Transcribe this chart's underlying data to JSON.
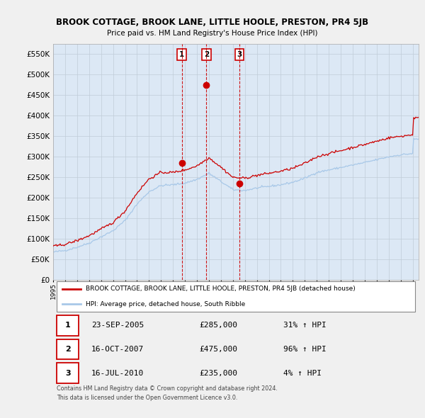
{
  "title": "BROOK COTTAGE, BROOK LANE, LITTLE HOOLE, PRESTON, PR4 5JB",
  "subtitle": "Price paid vs. HM Land Registry's House Price Index (HPI)",
  "ylabel_ticks": [
    "£0",
    "£50K",
    "£100K",
    "£150K",
    "£200K",
    "£250K",
    "£300K",
    "£350K",
    "£400K",
    "£450K",
    "£500K",
    "£550K"
  ],
  "ytick_values": [
    0,
    50000,
    100000,
    150000,
    200000,
    250000,
    300000,
    350000,
    400000,
    450000,
    500000,
    550000
  ],
  "ylim": [
    0,
    575000
  ],
  "xlim_start": 1995.0,
  "xlim_end": 2025.5,
  "hpi_color": "#a8c8e8",
  "price_color": "#cc0000",
  "dashed_line_color": "#cc0000",
  "background_color": "#f0f0f0",
  "plot_bg_color": "#dce8f5",
  "legend_label_red": "BROOK COTTAGE, BROOK LANE, LITTLE HOOLE, PRESTON, PR4 5JB (detached house)",
  "legend_label_blue": "HPI: Average price, detached house, South Ribble",
  "transactions": [
    {
      "label": "1",
      "date": 2005.73,
      "price": 285000
    },
    {
      "label": "2",
      "date": 2007.79,
      "price": 475000
    },
    {
      "label": "3",
      "date": 2010.54,
      "price": 235000
    }
  ],
  "table_rows": [
    {
      "num": "1",
      "date": "23-SEP-2005",
      "price": "£285,000",
      "change": "31% ↑ HPI"
    },
    {
      "num": "2",
      "date": "16-OCT-2007",
      "price": "£475,000",
      "change": "96% ↑ HPI"
    },
    {
      "num": "3",
      "date": "16-JUL-2010",
      "price": "£235,000",
      "change": "4% ↑ HPI"
    }
  ],
  "footer": "Contains HM Land Registry data © Crown copyright and database right 2024.\nThis data is licensed under the Open Government Licence v3.0."
}
